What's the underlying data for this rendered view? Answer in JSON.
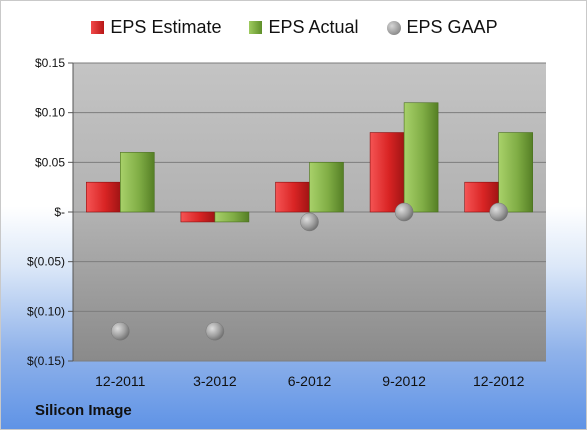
{
  "company": "Silicon Image",
  "colors": {
    "estimate": "#d42a2a",
    "actual": "#7fae45",
    "gaap": "#9a9a9a"
  },
  "chart_data": {
    "type": "bar",
    "categories": [
      "12-2011",
      "3-2012",
      "6-2012",
      "9-2012",
      "12-2012"
    ],
    "series": [
      {
        "name": "EPS Estimate",
        "values": [
          0.03,
          -0.01,
          0.03,
          0.08,
          0.03
        ],
        "style": "bar"
      },
      {
        "name": "EPS Actual",
        "values": [
          0.06,
          -0.01,
          0.05,
          0.11,
          0.08
        ],
        "style": "bar"
      },
      {
        "name": "EPS GAAP",
        "values": [
          -0.12,
          -0.12,
          -0.01,
          0.0,
          0.0
        ],
        "style": "marker"
      }
    ],
    "ylim": [
      -0.15,
      0.15
    ],
    "yticks": [
      0.15,
      0.1,
      0.05,
      0.0,
      -0.05,
      -0.1,
      -0.15
    ],
    "ytick_labels": [
      "$0.15",
      "$0.10",
      "$0.05",
      "$-",
      "$(0.05)",
      "$(0.10)",
      "$(0.15)"
    ],
    "grid": true,
    "legend_position": "top"
  }
}
